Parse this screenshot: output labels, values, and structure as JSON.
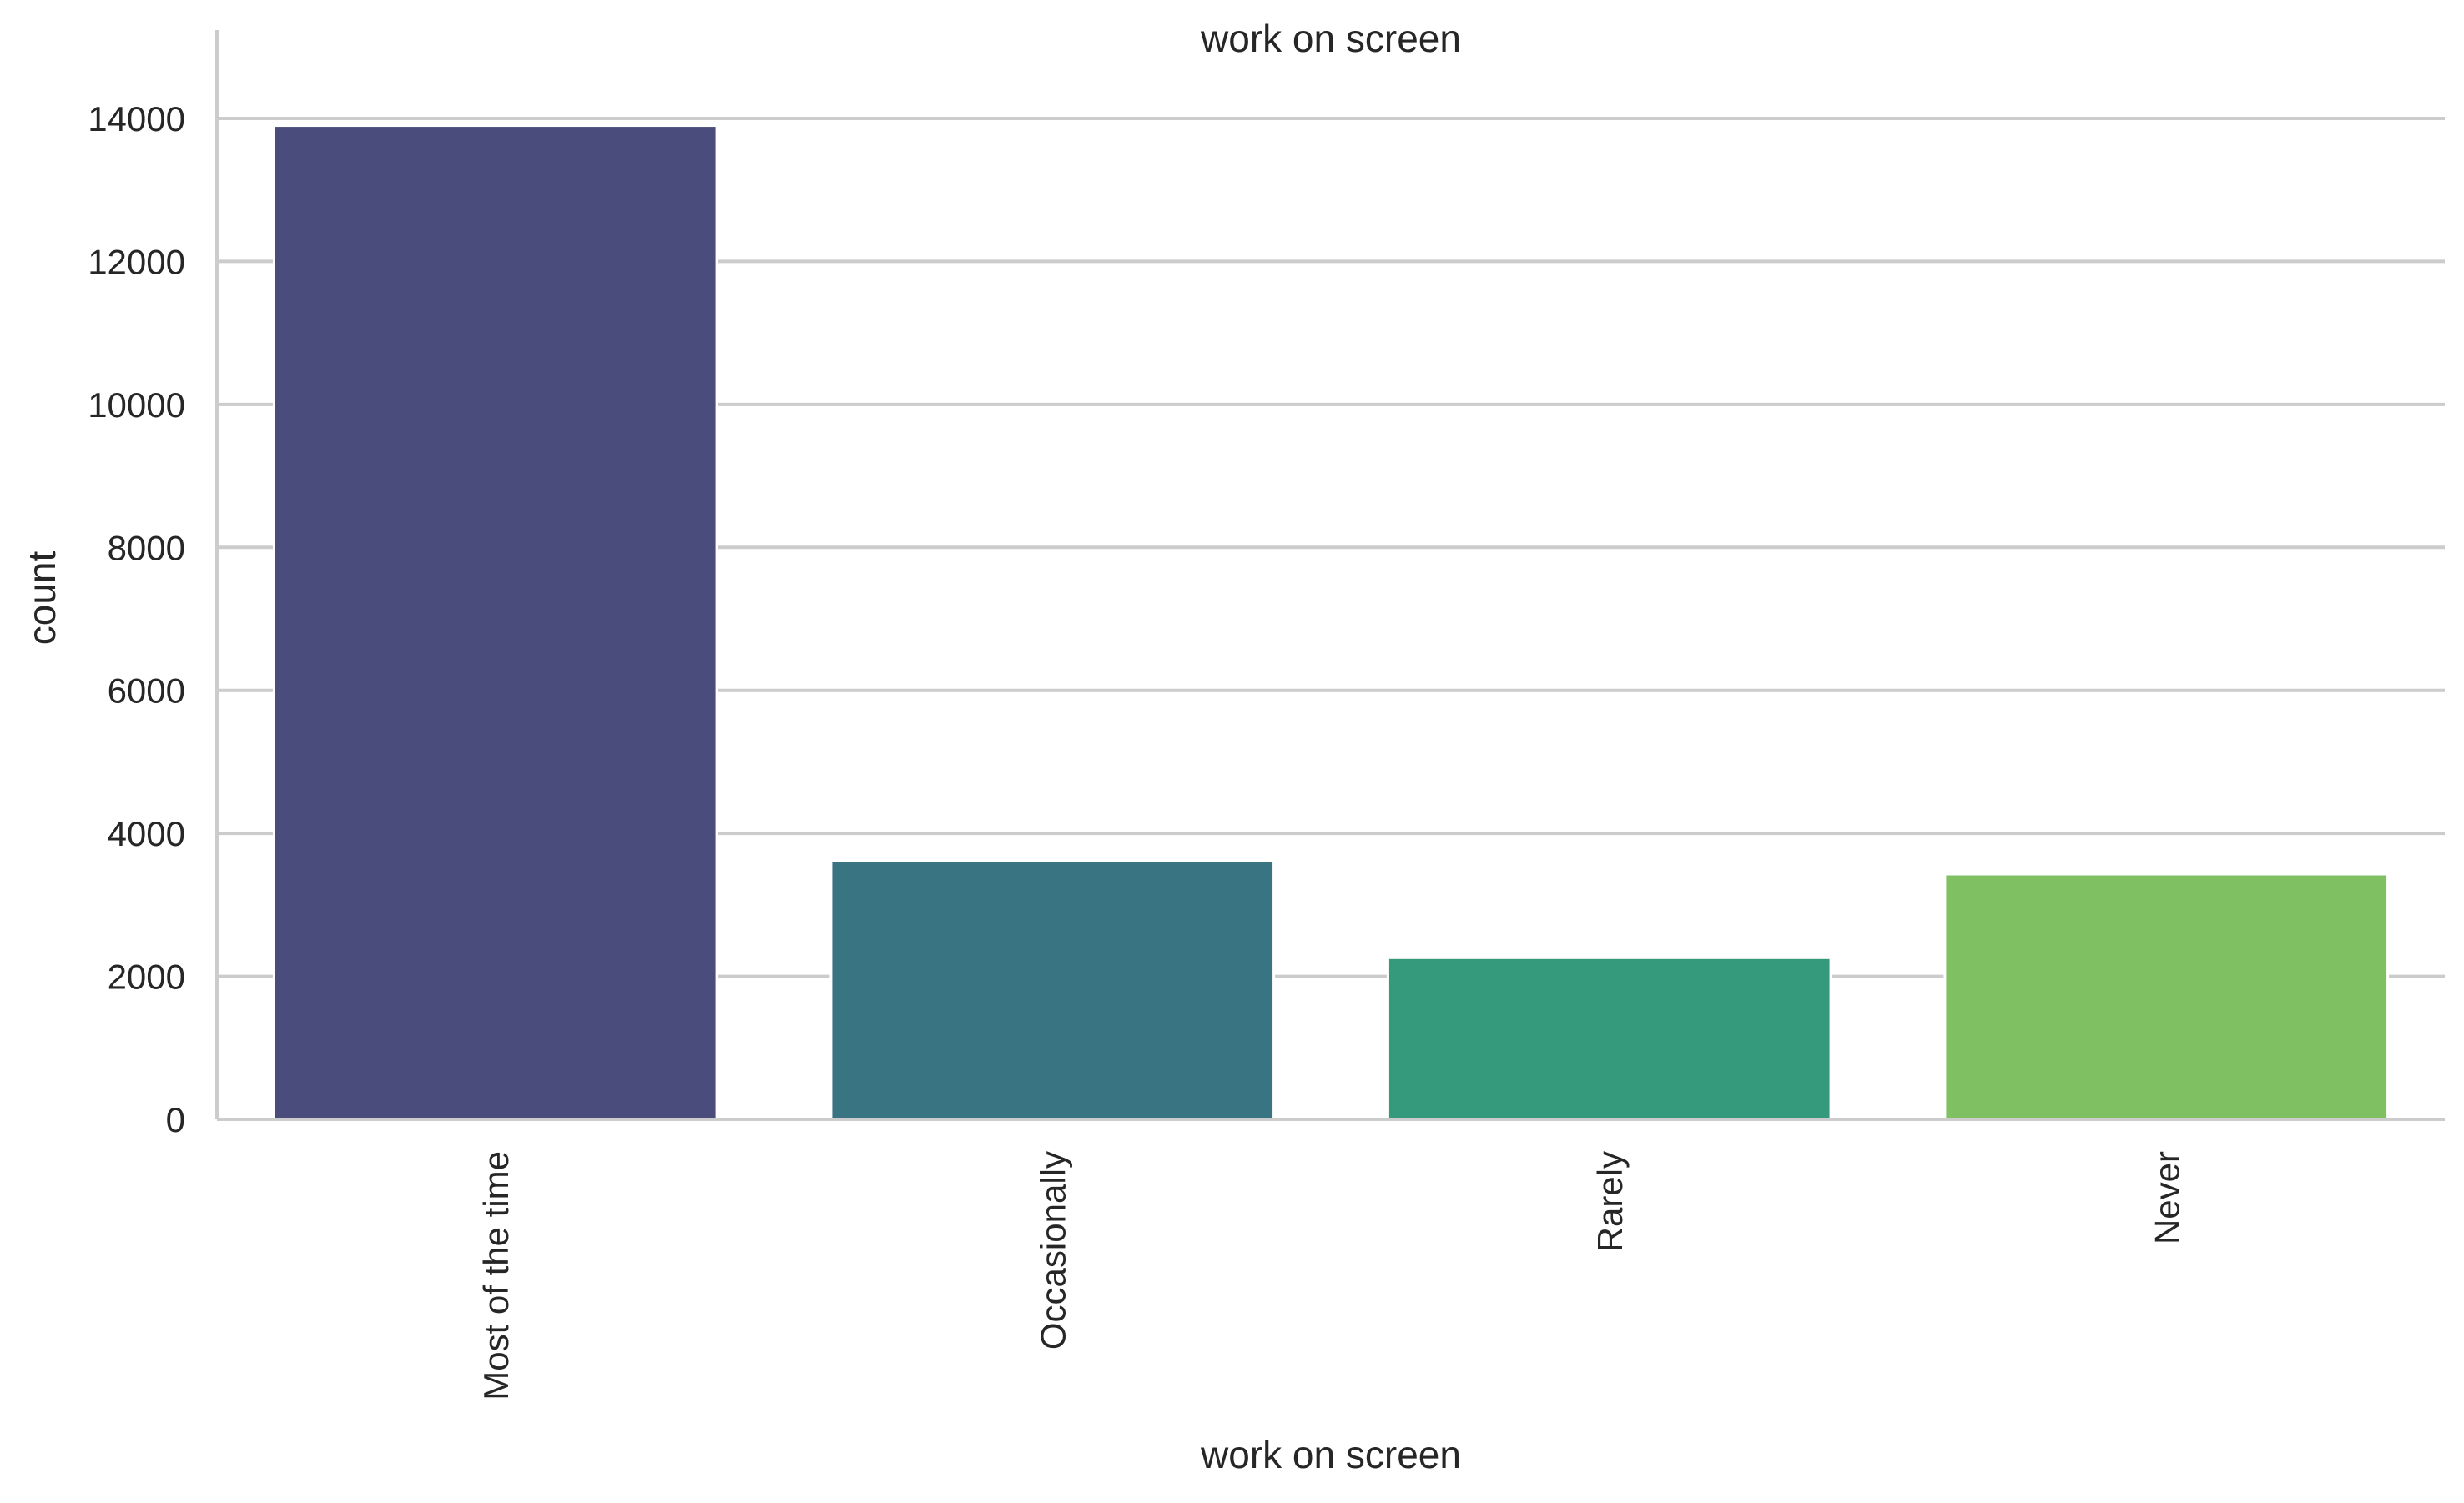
{
  "chart_data": {
    "type": "bar",
    "title": "work on screen",
    "xlabel": "work on screen",
    "ylabel": "count",
    "categories": [
      "Most of the time",
      "Occasionally",
      "Rarely",
      "Never"
    ],
    "values": [
      13900,
      3620,
      2260,
      3430
    ],
    "colors": [
      "#4a4c7c",
      "#387481",
      "#359a7c",
      "#7fc162"
    ],
    "ylim": [
      0,
      14600
    ],
    "yticks": [
      0,
      2000,
      4000,
      6000,
      8000,
      10000,
      12000,
      14000
    ],
    "ytick_labels": [
      "0",
      "2000",
      "4000",
      "6000",
      "8000",
      "10000",
      "12000",
      "14000"
    ],
    "grid": "horizontal",
    "x_tick_rotation": 90,
    "legend": "none"
  }
}
